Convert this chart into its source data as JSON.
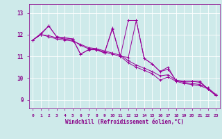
{
  "xlabel": "Windchill (Refroidissement éolien,°C)",
  "bg_color": "#ceeaea",
  "line_color": "#990099",
  "grid_color": "#b8d8d8",
  "axis_color": "#880088",
  "tick_label_color": "#880088",
  "x_ticks": [
    0,
    1,
    2,
    3,
    4,
    5,
    6,
    7,
    8,
    9,
    10,
    11,
    12,
    13,
    14,
    15,
    16,
    17,
    18,
    19,
    20,
    21,
    22,
    23
  ],
  "y_ticks": [
    9,
    10,
    11,
    12,
    13
  ],
  "ylim": [
    8.6,
    13.4
  ],
  "xlim": [
    -0.5,
    23.5
  ],
  "series": [
    [
      11.75,
      12.0,
      12.4,
      11.9,
      11.85,
      11.8,
      11.1,
      11.3,
      11.3,
      11.15,
      12.25,
      11.0,
      12.65,
      12.65,
      10.9,
      10.65,
      10.3,
      10.5,
      9.85,
      9.85,
      9.85,
      9.85,
      9.5,
      9.2
    ],
    [
      11.75,
      12.0,
      11.95,
      11.85,
      11.8,
      11.75,
      11.5,
      11.35,
      11.3,
      11.2,
      11.1,
      11.0,
      10.7,
      10.5,
      10.35,
      10.2,
      9.9,
      10.05,
      9.85,
      9.75,
      9.7,
      9.65,
      9.5,
      9.2
    ],
    [
      11.75,
      12.0,
      11.9,
      11.8,
      11.75,
      11.7,
      11.55,
      11.4,
      11.35,
      11.25,
      11.15,
      11.05,
      10.8,
      10.6,
      10.45,
      10.3,
      10.1,
      10.15,
      9.9,
      9.8,
      9.75,
      9.7,
      9.55,
      9.25
    ],
    [
      11.75,
      12.05,
      12.4,
      11.9,
      11.85,
      11.8,
      11.1,
      11.3,
      11.35,
      11.15,
      12.3,
      11.0,
      10.95,
      12.65,
      10.9,
      10.65,
      10.3,
      10.4,
      9.9,
      9.85,
      9.85,
      9.8,
      9.5,
      9.2
    ]
  ]
}
